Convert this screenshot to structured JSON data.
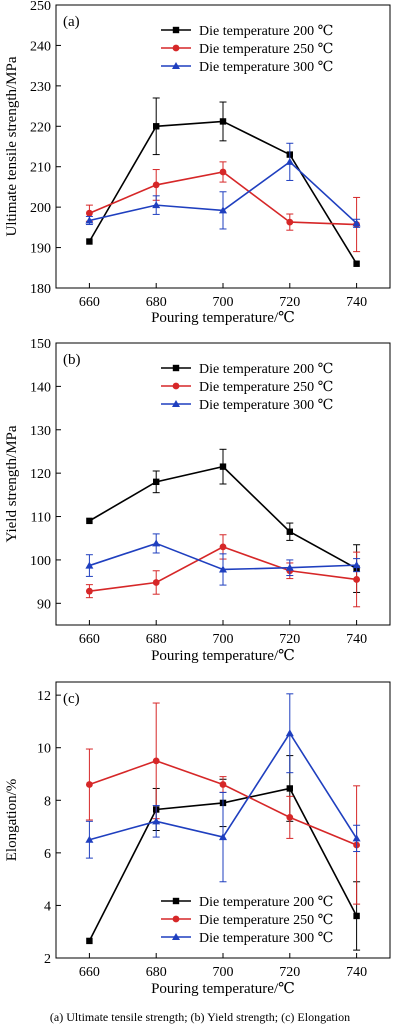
{
  "caption": "(a) Ultimate tensile strength;  (b) Yield strength; (c) Elongation",
  "chart_data": [
    {
      "type": "line",
      "panel_label": "(a)",
      "xlabel": "Pouring temperature/℃",
      "ylabel": "Ultimate tensile strength/MPa",
      "x": [
        660,
        680,
        700,
        720,
        740
      ],
      "xticks": [
        660,
        680,
        700,
        720,
        740
      ],
      "xlim": [
        650,
        750
      ],
      "ylim": [
        180,
        250
      ],
      "yticks": [
        180,
        190,
        200,
        210,
        220,
        230,
        240,
        250
      ],
      "legend_position": "top-right",
      "series": [
        {
          "name": "Die temperature 200 ℃",
          "color": "#000000",
          "marker": "square",
          "values": [
            191.5,
            220,
            221.2,
            213,
            186
          ],
          "errors": [
            0,
            7,
            4.8,
            0,
            0
          ]
        },
        {
          "name": "Die temperature 250 ℃",
          "color": "#d62728",
          "marker": "circle",
          "values": [
            198.5,
            205.5,
            208.7,
            196.3,
            195.7
          ],
          "errors": [
            2,
            3.8,
            2.5,
            2,
            6.7
          ]
        },
        {
          "name": "Die temperature 300 ℃",
          "color": "#1f3fbf",
          "marker": "triangle",
          "values": [
            196.7,
            200.5,
            199.2,
            211.2,
            196
          ],
          "errors": [
            1,
            2.3,
            4.6,
            4.6,
            1
          ]
        }
      ]
    },
    {
      "type": "line",
      "panel_label": "(b)",
      "xlabel": "Pouring temperature/℃",
      "ylabel": "Yield strength/MPa",
      "x": [
        660,
        680,
        700,
        720,
        740
      ],
      "xticks": [
        660,
        680,
        700,
        720,
        740
      ],
      "xlim": [
        650,
        750
      ],
      "ylim": [
        85,
        150
      ],
      "yticks": [
        90,
        100,
        110,
        120,
        130,
        140,
        150
      ],
      "legend_position": "top-right",
      "series": [
        {
          "name": "Die temperature 200 ℃",
          "color": "#000000",
          "marker": "square",
          "values": [
            109,
            118,
            121.5,
            106.5,
            98
          ],
          "errors": [
            0,
            2.5,
            4,
            2,
            5.5
          ]
        },
        {
          "name": "Die temperature 250 ℃",
          "color": "#d62728",
          "marker": "circle",
          "values": [
            92.8,
            94.8,
            103,
            97.5,
            95.5
          ],
          "errors": [
            1.5,
            2.7,
            2.8,
            1.8,
            6.3
          ]
        },
        {
          "name": "Die temperature 300 ℃",
          "color": "#1f3fbf",
          "marker": "triangle",
          "values": [
            98.7,
            103.8,
            97.8,
            98.2,
            98.8
          ],
          "errors": [
            2.5,
            2.2,
            3.6,
            1.8,
            1.5
          ]
        }
      ]
    },
    {
      "type": "line",
      "panel_label": "(c)",
      "xlabel": "Pouring temperature/℃",
      "ylabel": "Elongation/%",
      "x": [
        660,
        680,
        700,
        720,
        740
      ],
      "xticks": [
        660,
        680,
        700,
        720,
        740
      ],
      "xlim": [
        650,
        750
      ],
      "ylim": [
        2,
        12.5
      ],
      "yticks": [
        2,
        4,
        6,
        8,
        10,
        12
      ],
      "legend_position": "bottom-right",
      "series": [
        {
          "name": "Die temperature 200 ℃",
          "color": "#000000",
          "marker": "square",
          "values": [
            2.65,
            7.65,
            7.9,
            8.45,
            3.6
          ],
          "errors": [
            0,
            0.8,
            0.9,
            1.25,
            1.3
          ]
        },
        {
          "name": "Die temperature 250 ℃",
          "color": "#d62728",
          "marker": "circle",
          "values": [
            8.6,
            9.5,
            8.6,
            7.35,
            6.3
          ],
          "errors": [
            1.35,
            2.2,
            0.3,
            0.8,
            2.25
          ]
        },
        {
          "name": "Die temperature 300 ℃",
          "color": "#1f3fbf",
          "marker": "triangle",
          "values": [
            6.5,
            7.2,
            6.6,
            10.55,
            6.55
          ],
          "errors": [
            0.7,
            0.6,
            1.7,
            1.5,
            0.5
          ]
        }
      ]
    }
  ]
}
